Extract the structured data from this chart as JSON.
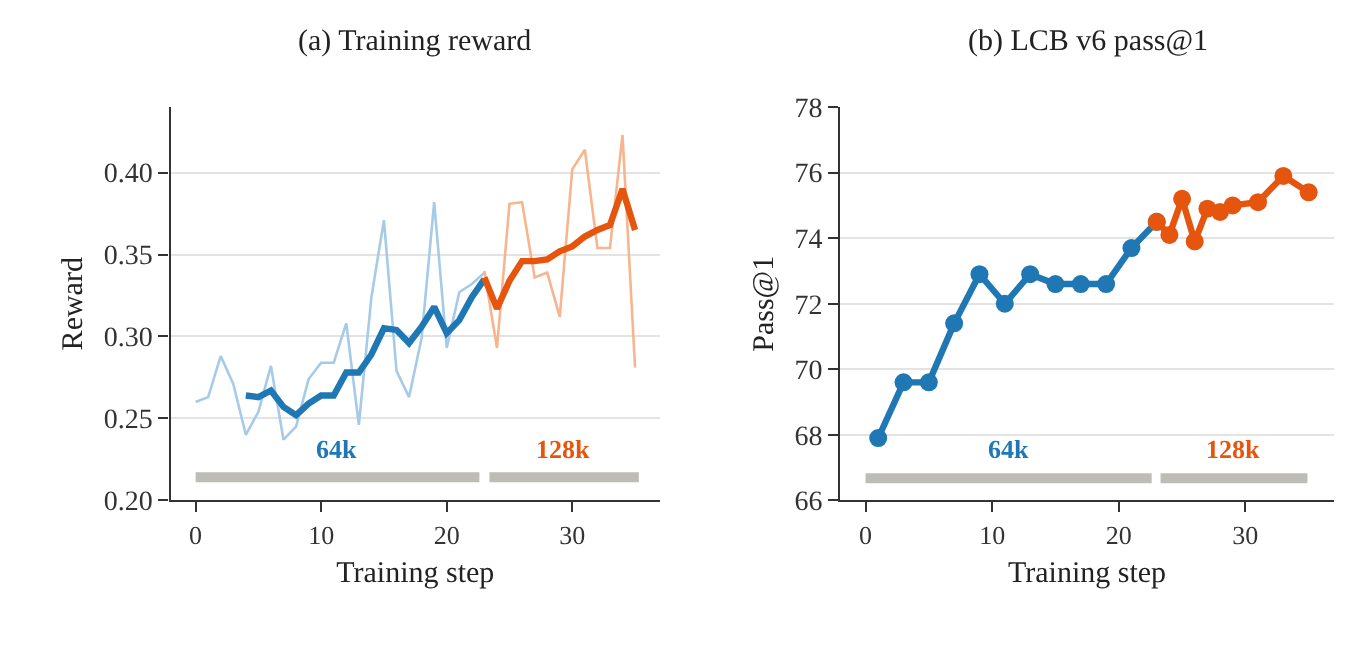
{
  "chart_data": [
    {
      "type": "line",
      "title": "(a) Training reward",
      "xlabel": "Training step",
      "ylabel": "Reward",
      "xlim": [
        -2,
        37
      ],
      "ylim": [
        0.2,
        0.44
      ],
      "xticks": [
        0,
        10,
        20,
        30
      ],
      "yticks": [
        {
          "value": 0.2,
          "label": "0.20"
        },
        0.25,
        {
          "value": 0.3,
          "label": "0.30"
        },
        0.35,
        {
          "value": 0.4,
          "label": "0.40"
        }
      ],
      "grid": "y",
      "marker": "none",
      "series": [
        {
          "color": "#a6cbe8",
          "x": [
            0,
            1,
            2,
            3,
            4,
            5,
            6,
            7,
            8,
            9,
            10,
            11,
            12,
            13,
            14,
            15,
            16,
            17,
            18,
            19,
            20,
            21,
            22,
            23
          ],
          "values": [
            0.26,
            0.263,
            0.288,
            0.271,
            0.24,
            0.254,
            0.282,
            0.237,
            0.245,
            0.274,
            0.284,
            0.284,
            0.308,
            0.246,
            0.324,
            0.371,
            0.279,
            0.263,
            0.299,
            0.382,
            0.293,
            0.327,
            0.332,
            0.339
          ]
        },
        {
          "color": "#f7b58f",
          "x": [
            23,
            24,
            25,
            26,
            27,
            28,
            29,
            30,
            31,
            32,
            33,
            34,
            35
          ],
          "values": [
            0.34,
            0.293,
            0.381,
            0.382,
            0.336,
            0.339,
            0.312,
            0.402,
            0.414,
            0.354,
            0.354,
            0.423,
            0.281
          ]
        },
        {
          "color": "#1f77b4",
          "x": [
            4,
            5,
            6,
            7,
            8,
            9,
            10,
            11,
            12,
            13,
            14,
            15,
            16,
            17,
            18,
            19,
            20,
            21,
            22,
            23
          ],
          "values": [
            0.264,
            0.263,
            0.267,
            0.257,
            0.252,
            0.259,
            0.264,
            0.264,
            0.278,
            0.278,
            0.289,
            0.305,
            0.304,
            0.296,
            0.306,
            0.318,
            0.302,
            0.31,
            0.324,
            0.335
          ]
        },
        {
          "color": "#e6550d",
          "x": [
            23,
            24,
            25,
            26,
            27,
            28,
            29,
            30,
            31,
            32,
            33,
            34,
            35
          ],
          "values": [
            0.336,
            0.317,
            0.334,
            0.346,
            0.346,
            0.347,
            0.352,
            0.355,
            0.361,
            0.365,
            0.368,
            0.39,
            0.365
          ]
        },
        {
          "name": "64k",
          "color": "#bdbcb6",
          "x": [
            0,
            22.6
          ],
          "values": [
            0.214,
            0.214
          ]
        },
        {
          "name": "128k",
          "color": "#bdbcb6",
          "x": [
            23.4,
            35.3
          ],
          "values": [
            0.214,
            0.214
          ]
        }
      ]
    },
    {
      "type": "line",
      "title": "(b) LCB v6 pass@1",
      "xlabel": "Training step",
      "ylabel": "Pass@1",
      "xlim": [
        -2,
        37
      ],
      "ylim": [
        66,
        78
      ],
      "xticks": [
        0,
        10,
        20,
        30
      ],
      "yticks": [
        66,
        68,
        70,
        72,
        74,
        76,
        78
      ],
      "grid": "y",
      "series": [
        {
          "color": "#1f77b4",
          "marker": "circle",
          "x": [
            1,
            3,
            5,
            7,
            9,
            11,
            13,
            15,
            17,
            19,
            21,
            23
          ],
          "values": [
            67.9,
            69.6,
            69.6,
            71.4,
            72.9,
            72.0,
            72.9,
            72.6,
            72.6,
            72.6,
            73.7,
            74.5
          ]
        },
        {
          "color": "#e6550d",
          "marker": "circle",
          "x": [
            23,
            24,
            25,
            26,
            27,
            28,
            29,
            31,
            33,
            35
          ],
          "values": [
            74.5,
            74.1,
            75.2,
            73.9,
            74.9,
            74.8,
            75.0,
            75.1,
            75.9,
            75.4
          ]
        },
        {
          "name": "64k",
          "color": "#bdbcb6",
          "x": [
            0,
            22.6
          ],
          "values": [
            66.67,
            66.67
          ]
        },
        {
          "name": "128k",
          "color": "#bdbcb6",
          "x": [
            23.3,
            34.9
          ],
          "values": [
            66.67,
            66.67
          ]
        }
      ]
    }
  ]
}
